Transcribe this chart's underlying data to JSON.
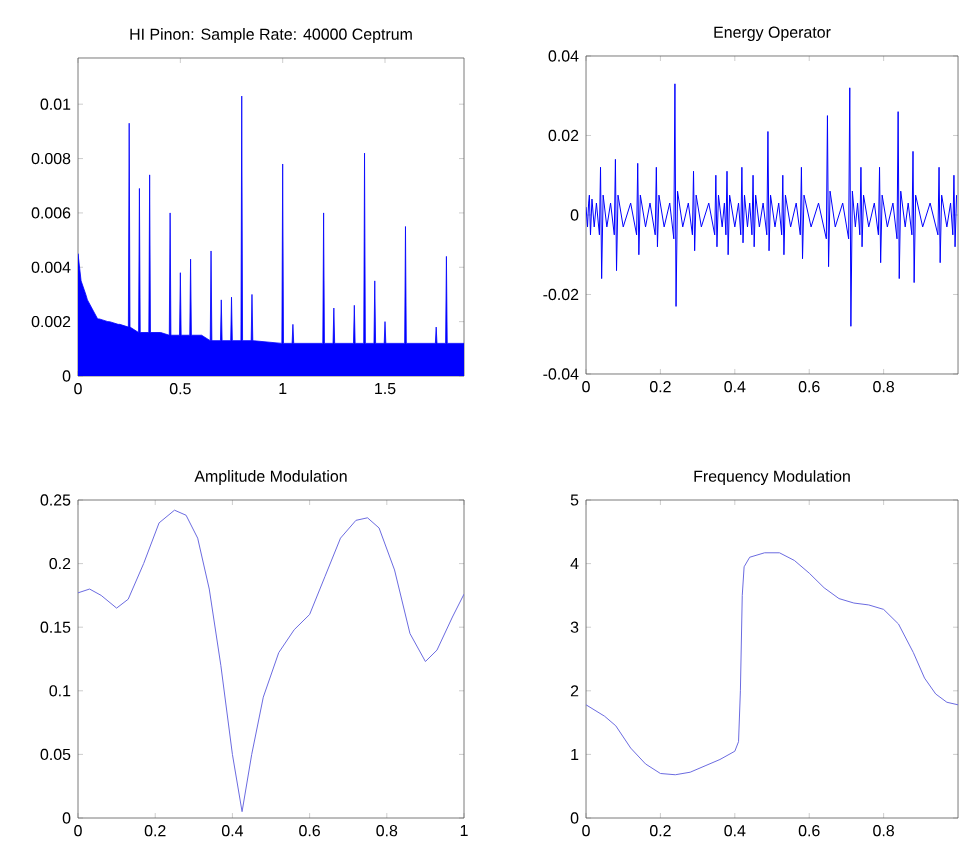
{
  "chart_data": [
    {
      "type": "area",
      "title": "HI Pinon: Sample Rate: 40000 Ceptrum",
      "color": "#0000ff",
      "x": [
        0,
        0.015,
        0.038,
        0.042,
        0.046,
        0.096,
        0.1,
        0.104,
        0.146,
        0.15,
        0.154,
        0.196,
        0.2,
        0.204,
        0.246,
        0.25,
        0.254,
        0.296,
        0.3,
        0.304,
        0.346,
        0.35,
        0.354,
        0.396,
        0.4,
        0.404,
        0.446,
        0.45,
        0.454,
        0.496,
        0.5,
        0.504,
        0.546,
        0.55,
        0.554,
        0.596,
        0.6,
        0.604,
        0.646,
        0.65,
        0.654,
        0.696,
        0.7,
        0.704,
        0.746,
        0.75,
        0.754,
        0.796,
        0.8,
        0.804,
        0.846,
        0.85,
        0.854,
        0.996,
        1.0,
        1.004,
        1.046,
        1.05,
        1.054,
        1.196,
        1.2,
        1.204,
        1.246,
        1.25,
        1.254,
        1.346,
        1.35,
        1.354,
        1.396,
        1.4,
        1.404,
        1.446,
        1.45,
        1.454,
        1.496,
        1.5,
        1.504,
        1.596,
        1.6,
        1.604,
        1.746,
        1.75,
        1.754,
        1.796,
        1.8,
        1.804,
        1.886
      ],
      "values": [
        0.0045,
        0.0035,
        0.003,
        null,
        0.0028,
        0.0021,
        null,
        0.0021,
        0.002,
        null,
        0.002,
        0.0019,
        null,
        0.0019,
        0.0018,
        0.0093,
        0.0018,
        0.0016,
        0.0069,
        0.0016,
        0.0016,
        0.0074,
        0.0016,
        0.0016,
        null,
        0.0016,
        0.0015,
        0.006,
        0.0015,
        0.0015,
        0.0038,
        0.0015,
        0.0015,
        0.0043,
        0.0015,
        0.0015,
        null,
        0.0015,
        0.0013,
        0.0046,
        0.0013,
        0.0013,
        0.0028,
        0.0013,
        0.0013,
        0.0029,
        0.0013,
        0.0013,
        0.0103,
        0.0013,
        0.0013,
        0.003,
        0.0013,
        0.0012,
        0.0078,
        0.0012,
        0.0012,
        0.0019,
        0.0012,
        0.0012,
        0.006,
        0.0012,
        0.0012,
        0.0025,
        0.0012,
        0.0012,
        0.0026,
        0.0012,
        0.0012,
        0.0082,
        0.0012,
        0.0012,
        0.0035,
        0.0012,
        0.0012,
        0.002,
        0.0012,
        0.0012,
        0.0055,
        0.0012,
        0.0012,
        0.0018,
        0.0012,
        0.0012,
        0.0044,
        0.0012,
        0.0012
      ],
      "xlim": [
        0,
        1.886
      ],
      "ylim": [
        0,
        0.0117
      ],
      "xticks": [
        0,
        0.5,
        1,
        1.5
      ],
      "yticks": [
        0,
        0.002,
        0.004,
        0.006,
        0.008,
        0.01
      ]
    },
    {
      "type": "line",
      "title": "Energy Operator",
      "color": "#0000ff",
      "x": [
        0,
        0.004,
        0.007,
        0.009,
        0.012,
        0.016,
        0.022,
        0.028,
        0.036,
        0.039,
        0.042,
        0.046,
        0.056,
        0.066,
        0.076,
        0.079,
        0.082,
        0.086,
        0.1,
        0.12,
        0.136,
        0.139,
        0.142,
        0.146,
        0.16,
        0.172,
        0.186,
        0.189,
        0.192,
        0.196,
        0.21,
        0.225,
        0.236,
        0.239,
        0.242,
        0.246,
        0.26,
        0.275,
        0.286,
        0.289,
        0.292,
        0.296,
        0.31,
        0.33,
        0.346,
        0.349,
        0.352,
        0.356,
        0.366,
        0.372,
        0.376,
        0.379,
        0.382,
        0.386,
        0.4,
        0.41,
        0.416,
        0.419,
        0.422,
        0.426,
        0.434,
        0.44,
        0.446,
        0.449,
        0.452,
        0.456,
        0.466,
        0.476,
        0.486,
        0.489,
        0.492,
        0.496,
        0.508,
        0.518,
        0.526,
        0.529,
        0.532,
        0.536,
        0.55,
        0.565,
        0.576,
        0.579,
        0.582,
        0.586,
        0.605,
        0.625,
        0.646,
        0.649,
        0.652,
        0.656,
        0.67,
        0.69,
        0.706,
        0.709,
        0.712,
        0.716,
        0.724,
        0.73,
        0.736,
        0.739,
        0.742,
        0.746,
        0.76,
        0.775,
        0.786,
        0.789,
        0.792,
        0.796,
        0.81,
        0.825,
        0.836,
        0.839,
        0.842,
        0.846,
        0.858,
        0.866,
        0.876,
        0.879,
        0.882,
        0.886,
        0.905,
        0.925,
        0.946,
        0.949,
        0.952,
        0.956,
        0.97,
        0.98,
        0.986,
        0.989,
        0.992,
        0.996
      ],
      "values": [
        0.002,
        -0.003,
        0.003,
        0.005,
        -0.005,
        0.004,
        -0.003,
        0.003,
        -0.005,
        0.012,
        -0.016,
        0.005,
        -0.003,
        0.003,
        -0.005,
        0.014,
        -0.014,
        0.005,
        -0.003,
        0.003,
        -0.005,
        0.013,
        -0.01,
        0.005,
        -0.003,
        0.003,
        -0.005,
        0.012,
        -0.008,
        0.005,
        -0.003,
        0.003,
        -0.006,
        0.033,
        -0.023,
        0.006,
        -0.003,
        0.003,
        -0.005,
        0.011,
        -0.009,
        0.005,
        -0.003,
        0.003,
        -0.005,
        0.01,
        -0.008,
        0.005,
        -0.003,
        0.003,
        -0.005,
        0.011,
        -0.01,
        0.005,
        -0.003,
        0.003,
        -0.005,
        0.012,
        -0.007,
        0.005,
        -0.003,
        0.003,
        -0.005,
        0.01,
        -0.008,
        0.005,
        -0.003,
        0.003,
        -0.005,
        0.021,
        -0.009,
        0.005,
        -0.003,
        0.003,
        -0.005,
        0.01,
        -0.01,
        0.005,
        -0.003,
        0.003,
        -0.005,
        0.012,
        -0.011,
        0.005,
        -0.003,
        0.003,
        -0.006,
        0.025,
        -0.013,
        0.006,
        -0.003,
        0.003,
        -0.006,
        0.032,
        -0.028,
        0.006,
        -0.003,
        0.003,
        -0.005,
        0.012,
        -0.008,
        0.005,
        -0.003,
        0.003,
        -0.005,
        0.012,
        -0.012,
        0.005,
        -0.003,
        0.003,
        -0.006,
        0.026,
        -0.016,
        0.006,
        -0.003,
        0.003,
        -0.005,
        0.016,
        -0.017,
        0.005,
        -0.003,
        0.003,
        -0.005,
        0.012,
        -0.012,
        0.005,
        -0.003,
        0.003,
        -0.005,
        0.01,
        -0.008,
        0.005
      ],
      "xlim": [
        0,
        1
      ],
      "ylim": [
        -0.04,
        0.04
      ],
      "xticks": [
        0,
        0.2,
        0.4,
        0.6,
        0.8
      ],
      "yticks": [
        -0.04,
        -0.02,
        0,
        0.02,
        0.04
      ]
    },
    {
      "type": "line",
      "title": "Amplitude Modulation",
      "color": "#6a6ae0",
      "x": [
        0,
        0.03,
        0.06,
        0.1,
        0.13,
        0.17,
        0.21,
        0.25,
        0.28,
        0.31,
        0.34,
        0.37,
        0.4,
        0.425,
        0.45,
        0.48,
        0.52,
        0.56,
        0.6,
        0.64,
        0.68,
        0.72,
        0.75,
        0.78,
        0.82,
        0.86,
        0.9,
        0.93,
        0.97,
        1.0
      ],
      "values": [
        0.177,
        0.18,
        0.175,
        0.165,
        0.172,
        0.2,
        0.232,
        0.242,
        0.238,
        0.22,
        0.18,
        0.12,
        0.05,
        0.005,
        0.05,
        0.095,
        0.13,
        0.148,
        0.16,
        0.19,
        0.22,
        0.234,
        0.236,
        0.228,
        0.195,
        0.145,
        0.123,
        0.132,
        0.158,
        0.176
      ],
      "xlim": [
        0,
        1
      ],
      "ylim": [
        0,
        0.25
      ],
      "xticks": [
        0,
        0.2,
        0.4,
        0.6,
        0.8,
        1
      ],
      "yticks": [
        0,
        0.05,
        0.1,
        0.15,
        0.2,
        0.25
      ]
    },
    {
      "type": "line",
      "title": "Frequency Modulation",
      "color": "#6a6ae0",
      "x": [
        0,
        0.05,
        0.08,
        0.12,
        0.16,
        0.2,
        0.24,
        0.28,
        0.32,
        0.36,
        0.4,
        0.41,
        0.415,
        0.42,
        0.425,
        0.44,
        0.48,
        0.52,
        0.56,
        0.6,
        0.64,
        0.68,
        0.72,
        0.76,
        0.8,
        0.84,
        0.88,
        0.91,
        0.94,
        0.97,
        1.0
      ],
      "values": [
        1.78,
        1.6,
        1.45,
        1.1,
        0.85,
        0.7,
        0.68,
        0.72,
        0.82,
        0.92,
        1.05,
        1.2,
        2.0,
        3.5,
        3.95,
        4.1,
        4.17,
        4.17,
        4.05,
        3.85,
        3.62,
        3.45,
        3.38,
        3.35,
        3.28,
        3.05,
        2.6,
        2.2,
        1.95,
        1.82,
        1.78
      ],
      "xlim": [
        0,
        1
      ],
      "ylim": [
        0,
        5
      ],
      "xticks": [
        0,
        0.2,
        0.4,
        0.6,
        0.8
      ],
      "yticks": [
        0,
        1,
        2,
        3,
        4,
        5
      ]
    }
  ]
}
